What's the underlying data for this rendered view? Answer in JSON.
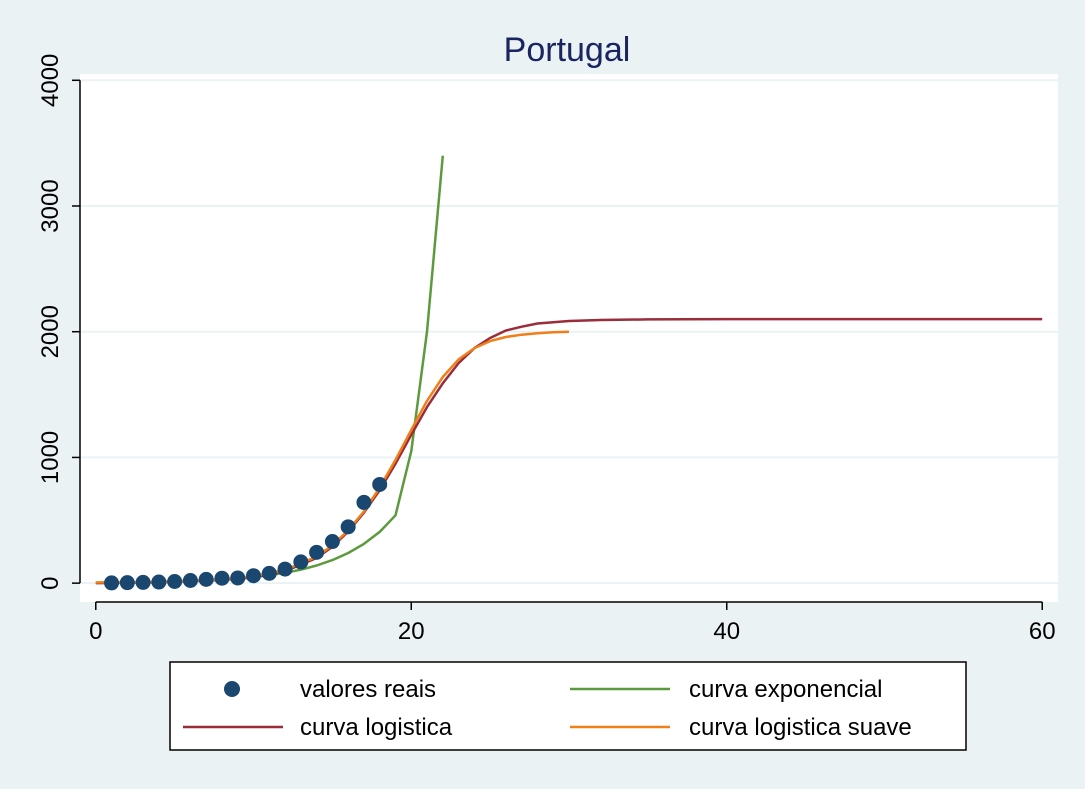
{
  "chart_data": {
    "type": "line",
    "title": "Portugal",
    "xlabel": "",
    "ylabel": "",
    "xlim": [
      -1,
      61
    ],
    "ylim": [
      -150,
      4050
    ],
    "xticks": [
      0,
      20,
      40,
      60
    ],
    "yticks": [
      0,
      1000,
      2000,
      3000,
      4000
    ],
    "grid": true,
    "legend_position": "bottom",
    "series": [
      {
        "name": "valores reais",
        "kind": "scatter",
        "color": "#1a476f",
        "x": [
          1,
          2,
          3,
          4,
          5,
          6,
          7,
          8,
          9,
          10,
          11,
          12,
          13,
          14,
          15,
          16,
          17,
          18
        ],
        "y": [
          2,
          4,
          6,
          9,
          13,
          21,
          30,
          39,
          41,
          59,
          78,
          112,
          169,
          245,
          331,
          448,
          642,
          785
        ]
      },
      {
        "name": "curva exponencial",
        "kind": "line",
        "color": "#5b9b3d",
        "x": [
          0,
          2,
          4,
          6,
          8,
          10,
          11,
          12,
          13,
          14,
          15,
          16,
          17,
          18,
          19,
          20,
          21,
          22
        ],
        "y": [
          4,
          6,
          10,
          17,
          29,
          48,
          63,
          82,
          107,
          140,
          183,
          240,
          312,
          408,
          540,
          1050,
          2000,
          3400
        ]
      },
      {
        "name": "curva logistica",
        "kind": "line",
        "color": "#9b2c3a",
        "x": [
          0,
          4,
          8,
          10,
          12,
          14,
          15,
          16,
          17,
          18,
          19,
          20,
          21,
          22,
          23,
          24,
          25,
          26,
          27,
          28,
          30,
          32,
          35,
          40,
          50,
          60
        ],
        "y": [
          0,
          6,
          25,
          45,
          95,
          200,
          290,
          410,
          560,
          740,
          950,
          1180,
          1400,
          1590,
          1750,
          1870,
          1950,
          2010,
          2040,
          2065,
          2085,
          2093,
          2098,
          2100,
          2100,
          2100
        ]
      },
      {
        "name": "curva logistica suave",
        "kind": "line",
        "color": "#f07f1a",
        "x": [
          0,
          4,
          8,
          10,
          12,
          14,
          15,
          16,
          17,
          18,
          19,
          20,
          21,
          22,
          23,
          24,
          25,
          26,
          27,
          28,
          29,
          30
        ],
        "y": [
          5,
          10,
          30,
          55,
          105,
          210,
          300,
          420,
          570,
          760,
          980,
          1220,
          1450,
          1640,
          1780,
          1870,
          1925,
          1958,
          1976,
          1988,
          1995,
          2000
        ]
      }
    ]
  }
}
